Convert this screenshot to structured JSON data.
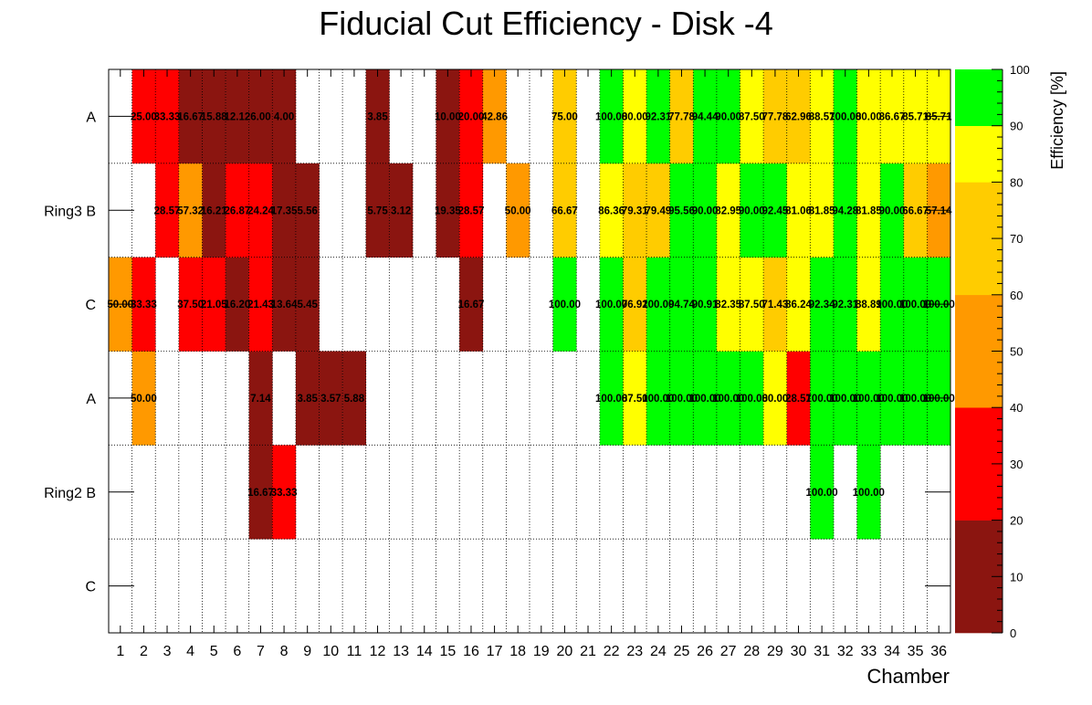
{
  "chart_data": {
    "type": "heatmap",
    "title": "Fiducial Cut Efficiency - Disk -4",
    "xlabel": "Chamber",
    "zlabel": "Efficiency [%]",
    "x": [
      1,
      2,
      3,
      4,
      5,
      6,
      7,
      8,
      9,
      10,
      11,
      12,
      13,
      14,
      15,
      16,
      17,
      18,
      19,
      20,
      21,
      22,
      23,
      24,
      25,
      26,
      27,
      28,
      29,
      30,
      31,
      32,
      33,
      34,
      35,
      36
    ],
    "y": [
      "C",
      "Ring2 B",
      "A",
      "C",
      "Ring3 B",
      "A"
    ],
    "zlim": [
      0,
      100
    ],
    "z_ticks": [
      0,
      10,
      20,
      30,
      40,
      50,
      60,
      70,
      80,
      90,
      100
    ],
    "palette": [
      {
        "min": 0,
        "max": 20,
        "color": "#8b1510"
      },
      {
        "min": 20,
        "max": 40,
        "color": "#ff0000"
      },
      {
        "min": 40,
        "max": 60,
        "color": "#ff9900"
      },
      {
        "min": 60,
        "max": 80,
        "color": "#ffcc00"
      },
      {
        "min": 80,
        "max": 90,
        "color": "#ffff00"
      },
      {
        "min": 90,
        "max": 100,
        "color": "#00ff00"
      }
    ],
    "rows": [
      {
        "label": "C",
        "values": [
          null,
          null,
          null,
          null,
          null,
          null,
          null,
          null,
          null,
          null,
          null,
          null,
          null,
          null,
          null,
          null,
          null,
          null,
          null,
          null,
          null,
          null,
          null,
          null,
          null,
          null,
          null,
          null,
          null,
          null,
          null,
          null,
          null,
          null,
          null,
          null
        ]
      },
      {
        "label": "Ring2 B",
        "values": [
          null,
          null,
          null,
          null,
          null,
          null,
          16.67,
          33.33,
          null,
          null,
          null,
          null,
          null,
          null,
          null,
          null,
          null,
          null,
          null,
          null,
          null,
          null,
          null,
          null,
          null,
          null,
          null,
          null,
          null,
          null,
          100.0,
          null,
          100.0,
          null,
          null,
          null
        ]
      },
      {
        "label": "A",
        "values": [
          null,
          50.0,
          null,
          null,
          null,
          null,
          7.14,
          null,
          3.85,
          3.57,
          5.88,
          null,
          null,
          null,
          null,
          null,
          null,
          null,
          null,
          null,
          null,
          100.0,
          87.5,
          100.0,
          100.0,
          100.0,
          100.0,
          100.0,
          80.0,
          28.57,
          100.0,
          100.0,
          100.0,
          100.0,
          100.0,
          100.0
        ]
      },
      {
        "label": "C",
        "values": [
          50.0,
          33.33,
          null,
          37.5,
          21.05,
          16.2,
          21.43,
          13.64,
          5.45,
          null,
          null,
          null,
          null,
          null,
          null,
          16.67,
          null,
          null,
          null,
          100.0,
          null,
          100.0,
          76.92,
          100.0,
          94.74,
          90.91,
          82.35,
          87.5,
          71.43,
          86.24,
          92.34,
          92.31,
          88.89,
          100.0,
          100.0,
          100.0
        ]
      },
      {
        "label": "Ring3 B",
        "values": [
          null,
          null,
          28.57,
          57.32,
          16.21,
          26.87,
          24.24,
          17.35,
          5.56,
          null,
          null,
          5.75,
          3.12,
          null,
          19.35,
          28.57,
          null,
          50.0,
          null,
          66.67,
          null,
          86.36,
          79.31,
          79.49,
          95.56,
          90.0,
          82.95,
          90.0,
          92.45,
          81.06,
          81.85,
          94.28,
          81.85,
          90.0,
          66.67,
          57.14
        ]
      },
      {
        "label": "A",
        "values": [
          null,
          25.0,
          33.33,
          16.67,
          15.88,
          12.12,
          6.0,
          4.0,
          null,
          null,
          null,
          3.85,
          null,
          null,
          10.0,
          20.0,
          42.86,
          null,
          null,
          75.0,
          null,
          100.0,
          80.0,
          92.31,
          77.78,
          94.44,
          90.0,
          87.5,
          77.78,
          62.96,
          88.57,
          100.0,
          80.0,
          86.67,
          85.71,
          85.71
        ]
      }
    ]
  }
}
